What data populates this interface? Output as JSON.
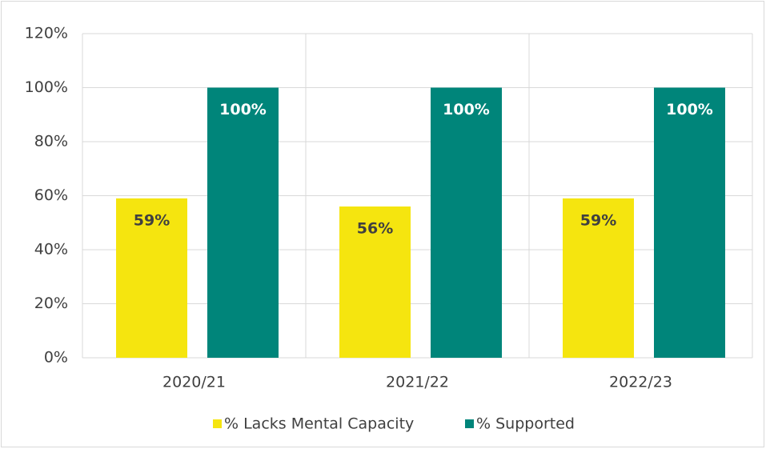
{
  "chart_data": {
    "type": "bar",
    "categories": [
      "2020/21",
      "2021/22",
      "2022/23"
    ],
    "series": [
      {
        "name": "% Lacks Mental Capacity",
        "color": "#f5e50f",
        "values": [
          59,
          56,
          59
        ],
        "value_labels": [
          "59%",
          "56%",
          "59%"
        ]
      },
      {
        "name": "% Supported",
        "color": "#00857a",
        "values": [
          100,
          100,
          100
        ],
        "value_labels": [
          "100%",
          "100%",
          "100%"
        ]
      }
    ],
    "ylim": [
      0,
      120
    ],
    "yticks": [
      {
        "value": 0,
        "label": "0%"
      },
      {
        "value": 20,
        "label": "20%"
      },
      {
        "value": 40,
        "label": "40%"
      },
      {
        "value": 60,
        "label": "60%"
      },
      {
        "value": 80,
        "label": "80%"
      },
      {
        "value": 100,
        "label": "100%"
      },
      {
        "value": 120,
        "label": "120%"
      }
    ],
    "grid": true,
    "legend": "bottom"
  }
}
